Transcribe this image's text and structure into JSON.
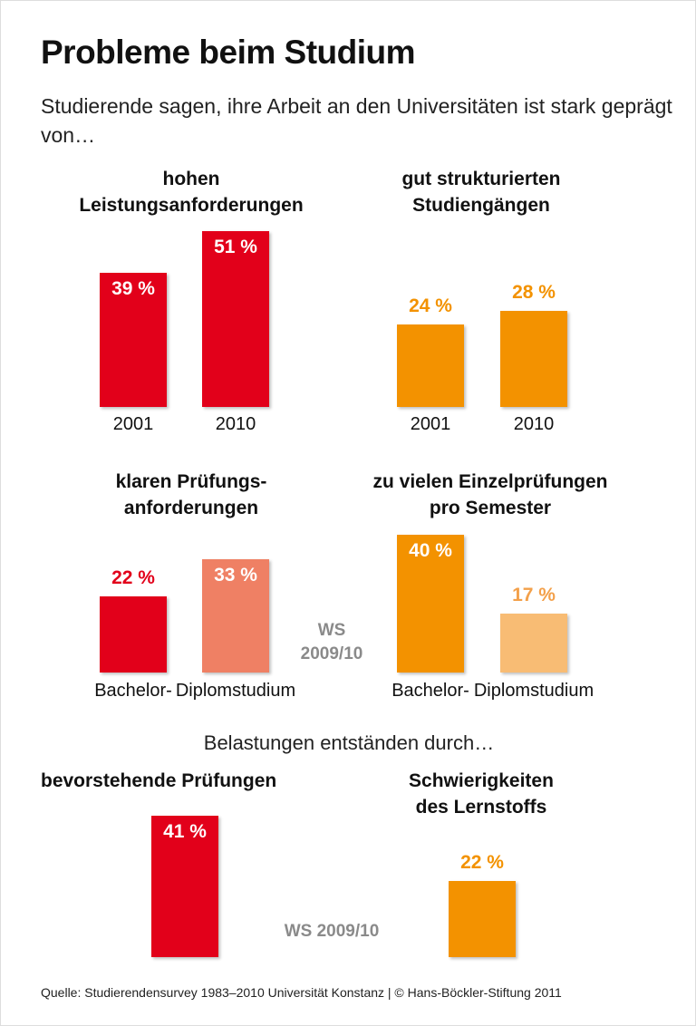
{
  "title": "Probleme beim Studium",
  "subtitle": "Studierende sagen, ihre Arbeit an den Universitäten ist stark geprägt von…",
  "subtitle2": "Belastungen entständen durch…",
  "source": "Quelle: Studierendensurvey 1983–2010 Universität Konstanz | © Hans-Böckler-Stiftung 2011",
  "colors": {
    "red": "#e2001a",
    "salmon": "#ef8064",
    "orange": "#f39200",
    "light_orange": "#f8bc74"
  },
  "chart_data": [
    {
      "type": "bar",
      "title": "hohen Leistungsanforderungen",
      "categories": [
        "2001",
        "2010"
      ],
      "values": [
        39,
        51
      ],
      "labels": [
        "39 %",
        "51 %"
      ],
      "colors": [
        "#e2001a",
        "#e2001a"
      ],
      "unit": "%"
    },
    {
      "type": "bar",
      "title": "gut strukturierten Studiengängen",
      "categories": [
        "2001",
        "2010"
      ],
      "values": [
        24,
        28
      ],
      "labels": [
        "24 %",
        "28 %"
      ],
      "colors": [
        "#f39200",
        "#f39200"
      ],
      "unit": "%"
    },
    {
      "type": "bar",
      "title": "klaren Prüfungs-anforderungen",
      "categories": [
        "Bachelor-",
        "Diplomstudium"
      ],
      "values": [
        22,
        33
      ],
      "labels": [
        "22 %",
        "33 %"
      ],
      "colors": [
        "#e2001a",
        "#ef8064"
      ],
      "unit": "%",
      "note": "WS 2009/10"
    },
    {
      "type": "bar",
      "title": "zu vielen Einzelprüfungen pro Semester",
      "categories": [
        "Bachelor-",
        "Diplomstudium"
      ],
      "values": [
        40,
        17
      ],
      "labels": [
        "40 %",
        "17 %"
      ],
      "colors": [
        "#f39200",
        "#f8bc74"
      ],
      "unit": "%"
    },
    {
      "type": "bar",
      "title": "bevorstehende Prüfungen",
      "categories": [
        ""
      ],
      "values": [
        41
      ],
      "labels": [
        "41 %"
      ],
      "colors": [
        "#e2001a"
      ],
      "unit": "%"
    },
    {
      "type": "bar",
      "title": "Schwierigkeiten des Lernstoffs",
      "categories": [
        ""
      ],
      "values": [
        22
      ],
      "labels": [
        "22 %"
      ],
      "colors": [
        "#f39200"
      ],
      "unit": "%",
      "note": "WS 2009/10"
    }
  ],
  "panel_titles": [
    [
      "hohen",
      "Leistungsanforderungen"
    ],
    [
      "gut strukturierten",
      "Studiengängen"
    ],
    [
      "klaren Prüfungs-",
      "anforderungen"
    ],
    [
      "zu vielen Einzelprüfungen",
      "pro Semester"
    ],
    [
      "bevorstehende Prüfungen"
    ],
    [
      "Schwierigkeiten",
      "des Lernstoffs"
    ]
  ],
  "notes": {
    "ws_top": "WS",
    "ws_bottom": "2009/10",
    "ws_full": "WS 2009/10"
  }
}
